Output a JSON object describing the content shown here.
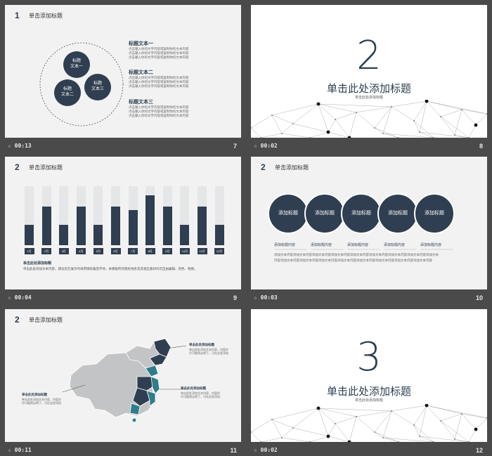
{
  "slides": [
    {
      "number": "7",
      "time": "00:13",
      "header_num": "1",
      "title": "单击添加标题",
      "circles": [
        "标题\n文本一",
        "标题\n文本二",
        "标题\n文本三"
      ],
      "blocks": [
        {
          "title": "标题文本一",
          "text": "点击输入你的文字内容或复制你的文本内容\n点击输入你的文字内容或复制你的文本内容\n点击输入你的文字内容或复制你的文本内容"
        },
        {
          "title": "标题文本二",
          "text": "点击输入你的文字内容或复制你的文本内容\n点击输入你的文字内容或复制你的文本内容\n点击输入你的文字内容或复制你的文本内容"
        },
        {
          "title": "标题文本三",
          "text": "点击输入你的文字内容或复制你的文本内容\n点击输入你的文字内容或复制你的文本内容\n点击输入你的文字内容或复制你的文本内容"
        }
      ]
    },
    {
      "number": "8",
      "time": "00:02",
      "digit": "2",
      "title": "单击此处添加标题",
      "subtitle": "单击此处添加标题"
    },
    {
      "number": "9",
      "time": "00:04",
      "header_num": "2",
      "title": "单击添加标题",
      "note_title": "单击此处添加标题",
      "note_text": "单击此处添加文本内容，建议您在展示时采用微软雅黑字体，本模板所有图形线条及其相应素材均可自由编辑、改色、替换。"
    },
    {
      "number": "10",
      "time": "00:03",
      "header_num": "2",
      "title": "单击添加标题",
      "circles": [
        "添加标题",
        "添加标题",
        "添加标题",
        "添加标题",
        "添加标题"
      ],
      "labels": [
        "添加标题内容",
        "添加标题内容",
        "添加标题内容",
        "添加标题内容",
        "添加标题内容"
      ],
      "text_lines": [
        "添加文本内容添加文本内容添加文本内容添加文本内容添加文本内容添加文本内容添加文本内容添加文本内容添加文本",
        "内容添加文本内容添加文本内容添加文本内容添加文本内容添加文本内容添加文本内容添加文本内容添加文本内容"
      ]
    },
    {
      "number": "11",
      "time": "00:11",
      "header_num": "2",
      "title": "单击添加标题",
      "callouts": [
        {
          "title": "单击此处添加标题",
          "text": "单击此处添加文本内容，内容应\n尽可能简洁明了，可在这里添加"
        },
        {
          "title": "单击此处添加标题",
          "text": "单击此处添加文本内容，内容应\n尽可能简洁明了，可在这里添加"
        },
        {
          "title": "单击此处添加标题",
          "text": "单击此处添加文本内容，内容应\n尽可能简洁明了，可在这里添加"
        }
      ]
    },
    {
      "number": "12",
      "time": "00:02",
      "digit": "3",
      "title": "单击此处添加标题",
      "subtitle": "单击此处添加标题"
    }
  ],
  "chart_data": {
    "type": "bar",
    "categories": [
      "1月",
      "2月",
      "3月",
      "4月",
      "5月",
      "6月",
      "7月",
      "8月",
      "9月",
      "10月",
      "11月",
      "12月"
    ],
    "values": [
      35,
      65,
      35,
      65,
      35,
      65,
      60,
      85,
      65,
      35,
      65,
      35
    ],
    "ylim": [
      0,
      100
    ]
  },
  "colors": {
    "navy": "#2f3e50",
    "teal": "#2e7d8c",
    "gray": "#c2c4c6"
  }
}
